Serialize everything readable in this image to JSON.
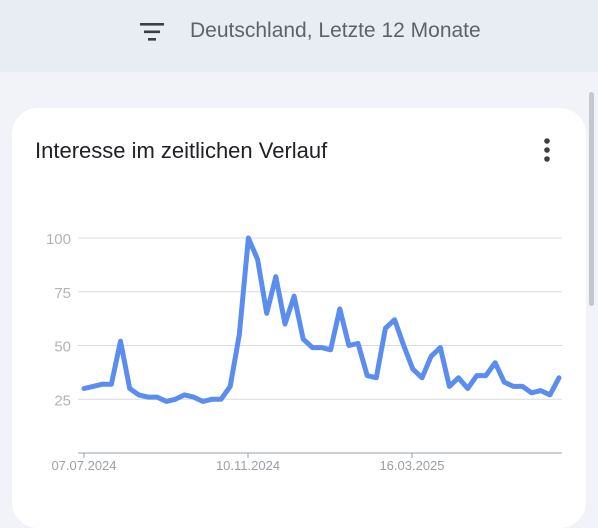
{
  "topbar": {
    "filter_label": "Deutschland, Letzte 12 Monate",
    "filter_icon": "filter-icon"
  },
  "card": {
    "title": "Interesse im zeitlichen Verlauf",
    "menu_icon": "more-vert-icon"
  },
  "chart_data": {
    "type": "line",
    "title": "",
    "xlabel": "",
    "ylabel": "",
    "ylim": [
      0,
      100
    ],
    "yticks": [
      25,
      50,
      75,
      100
    ],
    "xtick_labels": [
      "07.07.2024",
      "10.11.2024",
      "16.03.2025"
    ],
    "grid": true,
    "line_color": "#5b8def",
    "series": [
      {
        "values": [
          30,
          31,
          32,
          32,
          52,
          30,
          27,
          26,
          26,
          24,
          25,
          27,
          26,
          24,
          25,
          25,
          31,
          55,
          100,
          90,
          65,
          82,
          60,
          73,
          53,
          49,
          49,
          48,
          67,
          50,
          51,
          36,
          35,
          58,
          62,
          50,
          39,
          35,
          45,
          49,
          31,
          35,
          30,
          36,
          36,
          42,
          33,
          31,
          31,
          28,
          29,
          27,
          35
        ]
      }
    ]
  }
}
